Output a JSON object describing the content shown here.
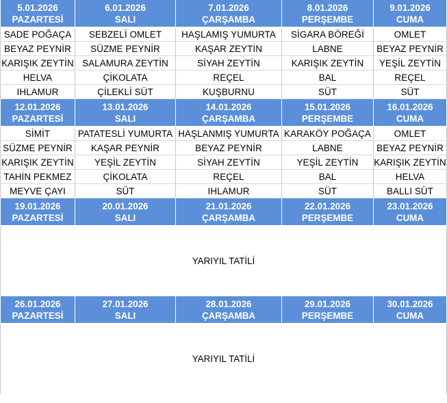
{
  "weeks": [
    {
      "days": [
        {
          "date": "5.01.2026",
          "day": "PAZARTESİ",
          "items": [
            "SADE POĞAÇA",
            "BEYAZ PEYNİR",
            "KARIŞIK ZEYTİN",
            "HELVA",
            "IHLAMUR"
          ]
        },
        {
          "date": "6.01.2026",
          "day": "SALI",
          "items": [
            "SEBZELİ OMLET",
            "SÜZME PEYNİR",
            "SALAMURA ZEYTİN",
            "ÇİKOLATA",
            "ÇİLEKLİ SÜT"
          ]
        },
        {
          "date": "7.01.2026",
          "day": "ÇARŞAMBA",
          "items": [
            "HAŞLAMIŞ YUMURTA",
            "KAŞAR ZEYTİN",
            "SİYAH ZEYTİN",
            "REÇEL",
            "KUŞBURNU"
          ]
        },
        {
          "date": "8.01.2026",
          "day": "PERŞEMBE",
          "items": [
            "SİGARA BÖREĞİ",
            "LABNE",
            "KARIŞIK ZEYTİN",
            "BAL",
            "SÜT"
          ]
        },
        {
          "date": "9.01.2026",
          "day": "CUMA",
          "items": [
            "OMLET",
            "BEYAZ PEYNİR",
            "YEŞİL ZEYTİN",
            "REÇEL",
            "SÜT"
          ]
        }
      ]
    },
    {
      "days": [
        {
          "date": "12.01.2026",
          "day": "PAZARTESİ",
          "items": [
            "SİMİT",
            "SÜZME PEYNİR",
            "KARIŞIK ZEYTİN",
            "TAHİN PEKMEZ",
            "MEYVE ÇAYI"
          ]
        },
        {
          "date": "13.01.2026",
          "day": "SALI",
          "items": [
            "PATATESLİ YUMURTA",
            "KAŞAR PEYNİR",
            "YEŞİL ZEYTİN",
            "ÇİKOLATA",
            "SÜT"
          ]
        },
        {
          "date": "14.01.2026",
          "day": "ÇARŞAMBA",
          "items": [
            "HAŞLANMIŞ YUMURTA",
            "BEYAZ PEYNİR",
            "SİYAH ZEYTİN",
            "REÇEL",
            "IHLAMUR"
          ]
        },
        {
          "date": "15.01.2026",
          "day": "PERŞEMBE",
          "items": [
            "KARAKÖY POĞAÇA",
            "LABNE",
            "YEŞİL ZEYTİN",
            "BAL",
            "SÜT"
          ]
        },
        {
          "date": "16.01.2026",
          "day": "CUMA",
          "items": [
            "OMLET",
            "BEYAZ PEYNİR",
            "KARIŞIK ZEYTİN",
            "HELVA",
            "BALLI SÜT"
          ]
        }
      ]
    },
    {
      "days": [
        {
          "date": "19.01.2026",
          "day": "PAZARTESİ"
        },
        {
          "date": "20.01.2026",
          "day": "SALI"
        },
        {
          "date": "21.01.2026",
          "day": "ÇARŞAMBA"
        },
        {
          "date": "22.01.2026",
          "day": "PERŞEMBE"
        },
        {
          "date": "23.01.2026",
          "day": "CUMA"
        }
      ],
      "note": "YARIYIL TATİLİ"
    },
    {
      "days": [
        {
          "date": "26.01.2026",
          "day": "PAZARTESİ"
        },
        {
          "date": "27.01.2026",
          "day": "SALI"
        },
        {
          "date": "28.01.2026",
          "day": "ÇARŞAMBA"
        },
        {
          "date": "29.01.2026",
          "day": "PERŞEMBE"
        },
        {
          "date": "30.01.2026",
          "day": "CUMA"
        }
      ],
      "note": "YARIYIL TATİLİ"
    }
  ],
  "colors": {
    "header_bg": "#5b8fd9",
    "header_text": "#ffffff",
    "body_text": "#000000"
  }
}
